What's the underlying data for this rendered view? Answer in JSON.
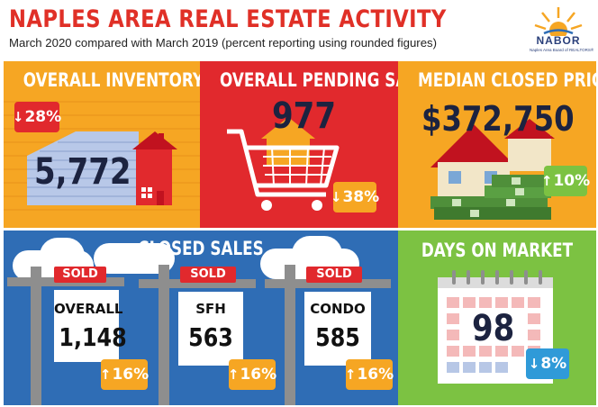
{
  "header": {
    "title": "NAPLES AREA REAL ESTATE ACTIVITY",
    "subtitle": "March 2020 compared with March 2019 (percent reporting using rounded figures)",
    "logo_text": "NABOR",
    "logo_subtext": "Naples Area Board of REALTORS®"
  },
  "inventory": {
    "title": "OVERALL INVENTORY",
    "value": "5,772",
    "change": "28%",
    "direction": "down"
  },
  "pending": {
    "title": "OVERALL PENDING SALES",
    "value": "977",
    "change": "38%",
    "direction": "down"
  },
  "price": {
    "title": "MEDIAN CLOSED PRICE",
    "value": "$372,750",
    "change": "10%",
    "direction": "up"
  },
  "closed_sales": {
    "title": "CLOSED SALES",
    "signs": [
      {
        "sold": "SOLD",
        "label": "OVERALL",
        "value": "1,148",
        "change": "16%",
        "direction": "up"
      },
      {
        "sold": "SOLD",
        "label": "SFH",
        "value": "563",
        "change": "16%",
        "direction": "up"
      },
      {
        "sold": "SOLD",
        "label": "CONDO",
        "value": "585",
        "change": "16%",
        "direction": "up"
      }
    ]
  },
  "days_on_market": {
    "title": "DAYS ON MARKET",
    "value": "98",
    "change": "8%",
    "direction": "down"
  },
  "colors": {
    "title_red": "#e03027",
    "orange": "#f6a623",
    "red": "#e1292d",
    "blue": "#2f6db5",
    "green": "#7cc242",
    "badge_blue": "#2f9ad8"
  },
  "icons": {
    "down": "down-arrow-icon",
    "up": "up-arrow-icon"
  }
}
